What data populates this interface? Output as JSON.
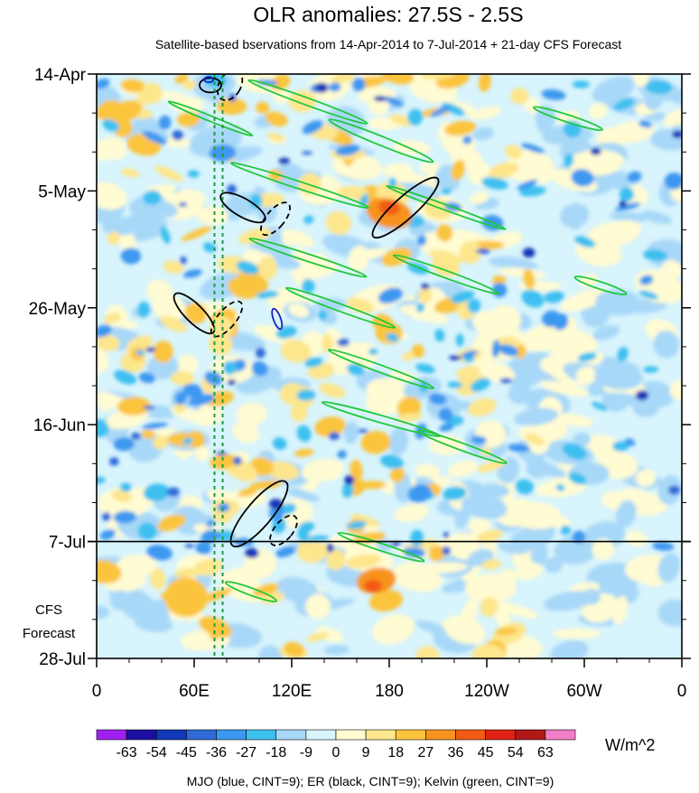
{
  "chart_data": {
    "type": "heatmap",
    "title": "OLR anomalies: 27.5S - 2.5S",
    "subtitle": "Satellite-based bservations from 14-Apr-2014 to 7-Jul-2014 + 21-day CFS Forecast",
    "x_ticks": [
      {
        "lon": 0,
        "label": "0"
      },
      {
        "lon": 60,
        "label": "60E"
      },
      {
        "lon": 120,
        "label": "120E"
      },
      {
        "lon": 180,
        "label": "180"
      },
      {
        "lon": 240,
        "label": "120W"
      },
      {
        "lon": 300,
        "label": "60W"
      },
      {
        "lon": 360,
        "label": "0"
      }
    ],
    "xlim": [
      0,
      360
    ],
    "y_ticks": [
      {
        "day": 0,
        "label": "14-Apr"
      },
      {
        "day": 21,
        "label": "5-May"
      },
      {
        "day": 42,
        "label": "26-May"
      },
      {
        "day": 63,
        "label": "16-Jun"
      },
      {
        "day": 84,
        "label": "7-Jul"
      },
      {
        "day": 105,
        "label": "28-Jul"
      }
    ],
    "ylim": [
      0,
      105
    ],
    "observation_end_day": 84,
    "forecast_label_lines": [
      "CFS",
      "Forecast"
    ],
    "colorbar": {
      "levels": [
        "-63",
        "-54",
        "-45",
        "-36",
        "-27",
        "-18",
        "-9",
        "0",
        "9",
        "18",
        "27",
        "36",
        "45",
        "54",
        "63"
      ],
      "colors": [
        "#a020f0",
        "#1c0ea0",
        "#1238b8",
        "#2f6ad8",
        "#3c98f0",
        "#3cc0f0",
        "#a8d8f8",
        "#d8f4fc",
        "#fffbd2",
        "#fde68c",
        "#fbc43c",
        "#f7931e",
        "#f35a14",
        "#e02214",
        "#b01818",
        "#f07ec8"
      ],
      "unit": "W/m^2"
    },
    "reference_lines_lon": [
      72.5,
      77.5
    ],
    "footnote": "MJO (blue, CINT=9); ER (black, CINT=9); Kelvin (green, CINT=9)",
    "contours": {
      "kelvin_color": "#22c83c",
      "er_color": "#000000",
      "mjo_color": "#1a20c0",
      "ref_line_color": "#229944"
    }
  }
}
